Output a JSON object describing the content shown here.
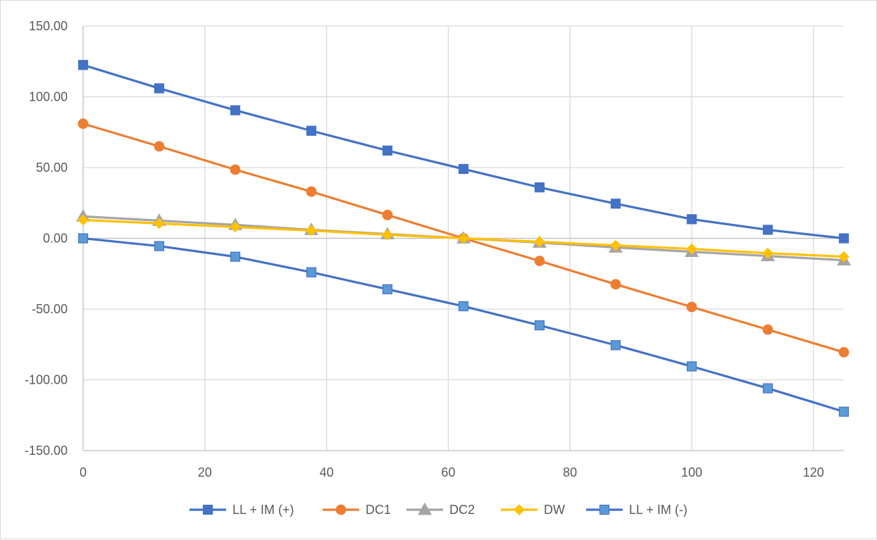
{
  "chart_data": {
    "type": "line",
    "title": "",
    "xlabel": "",
    "ylabel": "",
    "xlim": [
      0,
      125
    ],
    "ylim": [
      -150,
      150
    ],
    "x_ticks": [
      0,
      20,
      40,
      60,
      80,
      100,
      120
    ],
    "x_tick_labels": [
      "0",
      "20",
      "40",
      "60",
      "80",
      "100",
      "120"
    ],
    "y_ticks": [
      150,
      100,
      50,
      0,
      -50,
      -100,
      -150
    ],
    "y_tick_labels": [
      "150.00",
      "100.00",
      "50.00",
      "0.00",
      "-50.00",
      "-100.00",
      "-150.00"
    ],
    "grid": true,
    "legend_position": "bottom",
    "x": [
      0,
      12.5,
      25,
      37.5,
      50,
      62.5,
      75,
      87.5,
      100,
      112.5,
      125
    ],
    "series": [
      {
        "name": "LL + IM (+)",
        "color": "#4472C4",
        "fill": "#4472C4",
        "marker": "square",
        "values": [
          122.5,
          106,
          90.5,
          76,
          62,
          49,
          36,
          24.5,
          13.5,
          6,
          0
        ]
      },
      {
        "name": "DC1",
        "color": "#ED7D31",
        "fill": "#ED7D31",
        "marker": "circle",
        "values": [
          81,
          65,
          48.5,
          33,
          16.5,
          0,
          -16,
          -32.5,
          -48.5,
          -64.5,
          -80.5
        ]
      },
      {
        "name": "DC2",
        "color": "#A5A5A5",
        "fill": "#A5A5A5",
        "marker": "triangle",
        "values": [
          15.5,
          12.5,
          9.5,
          6,
          3,
          0,
          -3,
          -6.5,
          -9.5,
          -12.5,
          -15.5
        ]
      },
      {
        "name": "DW",
        "color": "#FFC000",
        "fill": "#FFC000",
        "marker": "diamond",
        "values": [
          13,
          10.5,
          8,
          5.5,
          2.5,
          0,
          -2.5,
          -5,
          -7.5,
          -10.5,
          -13
        ]
      },
      {
        "name": "LL + IM (-)",
        "color": "#4472C4",
        "fill": "#5B9BD5",
        "marker": "square",
        "values": [
          0,
          -5.5,
          -13,
          -24,
          -36,
          -48,
          -61.5,
          -75.5,
          -90.5,
          -106,
          -122.5
        ]
      }
    ]
  }
}
